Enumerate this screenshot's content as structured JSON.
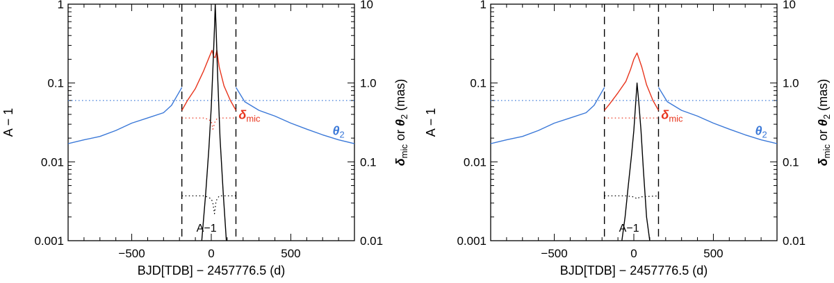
{
  "chart_data": [
    {
      "type": "line",
      "xlabel": "BJD[TDB] − 2457776.5 (d)",
      "ylabel_left": "A − 1",
      "ylabel_right_parts": [
        "δ",
        "mic",
        " or ",
        "θ",
        "2",
        " (mas)"
      ],
      "xlim": [
        -900,
        900
      ],
      "ylim_left": [
        0.001,
        1
      ],
      "ylim_right": [
        0.01,
        10
      ],
      "log_y": true,
      "x_ticks": [
        -500,
        0,
        500
      ],
      "x_tick_labels": [
        "−500",
        "0",
        "500"
      ],
      "y_ticks_left": [
        0.001,
        0.01,
        0.1,
        1
      ],
      "y_tick_labels_left": [
        "0.001",
        "0.01",
        "0.1",
        "1"
      ],
      "y_ticks_right": [
        0.01,
        0.1,
        1.0,
        10
      ],
      "y_tick_labels_right": [
        "0.01",
        "0.1",
        "1.0",
        "10"
      ],
      "vlines": [
        -185,
        155
      ],
      "hlines": [
        {
          "value": 0.6,
          "axis": "right",
          "style": "dotted",
          "color": "#3a78d8"
        }
      ],
      "annotations": [
        {
          "text": "A−1",
          "x": -30,
          "y_left": 0.0012
        },
        {
          "text_main": "δ",
          "text_sub": "mic",
          "x": 240,
          "y_left": 0.035,
          "color": "#e8341c"
        },
        {
          "text_main": "θ",
          "text_sub": "2",
          "x": 800,
          "y_left": 0.022,
          "color": "#3a78d8"
        }
      ],
      "series": [
        {
          "axis": "right",
          "color": "#3a78d8",
          "style": "solid",
          "x": [
            -900,
            -800,
            -700,
            -600,
            -500,
            -400,
            -300,
            -250,
            -185
          ],
          "y": [
            0.17,
            0.19,
            0.21,
            0.25,
            0.31,
            0.36,
            0.42,
            0.52,
            0.88
          ]
        },
        {
          "axis": "right",
          "color": "#3a78d8",
          "style": "solid",
          "x": [
            155,
            210,
            300,
            400,
            500,
            600,
            700,
            800,
            900
          ],
          "y": [
            0.88,
            0.58,
            0.45,
            0.38,
            0.31,
            0.26,
            0.22,
            0.19,
            0.17
          ]
        },
        {
          "axis": "right",
          "color": "#e8341c",
          "style": "solid",
          "x": [
            -185,
            -150,
            -100,
            -50,
            -10,
            5,
            15,
            25,
            35,
            50,
            80,
            120,
            155
          ],
          "y": [
            0.45,
            0.6,
            0.85,
            1.4,
            2.2,
            2.6,
            2.15,
            2.1,
            2.6,
            1.6,
            0.92,
            0.6,
            0.45
          ]
        },
        {
          "axis": "right",
          "color": "#e8341c",
          "style": "dotted",
          "x": [
            -185,
            -100,
            -40,
            0,
            10,
            25,
            40,
            80,
            155
          ],
          "y": [
            0.36,
            0.36,
            0.36,
            0.33,
            0.26,
            0.33,
            0.36,
            0.36,
            0.36
          ]
        },
        {
          "axis": "left",
          "color": "#000000",
          "style": "solid",
          "x": [
            -60,
            -35,
            -15,
            0,
            10,
            20,
            25,
            30,
            40,
            55,
            75,
            95
          ],
          "y": [
            0.00095,
            0.004,
            0.015,
            0.05,
            0.15,
            0.5,
            1.0,
            0.5,
            0.12,
            0.02,
            0.004,
            0.00095
          ]
        },
        {
          "axis": "left",
          "color": "#000000",
          "style": "dotted",
          "x": [
            -185,
            -100,
            -40,
            0,
            10,
            20,
            30,
            50,
            155
          ],
          "y": [
            0.0037,
            0.0037,
            0.0037,
            0.0034,
            0.003,
            0.0022,
            0.0032,
            0.0037,
            0.0037
          ]
        }
      ]
    },
    {
      "type": "line",
      "xlabel": "BJD[TDB] − 2457776.5 (d)",
      "ylabel_left": "A − 1",
      "ylabel_right_parts": [
        "δ",
        "mic",
        " or ",
        "θ",
        "2",
        " (mas)"
      ],
      "xlim": [
        -900,
        900
      ],
      "ylim_left": [
        0.001,
        1
      ],
      "ylim_right": [
        0.01,
        10
      ],
      "log_y": true,
      "x_ticks": [
        -500,
        0,
        500
      ],
      "x_tick_labels": [
        "−500",
        "0",
        "500"
      ],
      "y_ticks_left": [
        0.001,
        0.01,
        0.1,
        1
      ],
      "y_tick_labels_left": [
        "0.001",
        "0.01",
        "0.1",
        "1"
      ],
      "y_ticks_right": [
        0.01,
        0.1,
        1.0,
        10
      ],
      "y_tick_labels_right": [
        "0.01",
        "0.1",
        "1.0",
        "10"
      ],
      "vlines": [
        -185,
        155
      ],
      "hlines": [
        {
          "value": 0.6,
          "axis": "right",
          "style": "dotted",
          "color": "#3a78d8"
        }
      ],
      "annotations": [
        {
          "text": "A−1",
          "x": -30,
          "y_left": 0.0012
        },
        {
          "text_main": "δ",
          "text_sub": "mic",
          "x": 240,
          "y_left": 0.035,
          "color": "#e8341c"
        },
        {
          "text_main": "θ",
          "text_sub": "2",
          "x": 800,
          "y_left": 0.022,
          "color": "#3a78d8"
        }
      ],
      "series": [
        {
          "axis": "right",
          "color": "#3a78d8",
          "style": "solid",
          "x": [
            -900,
            -800,
            -700,
            -600,
            -500,
            -400,
            -300,
            -250,
            -185
          ],
          "y": [
            0.17,
            0.19,
            0.21,
            0.25,
            0.31,
            0.36,
            0.42,
            0.52,
            0.88
          ]
        },
        {
          "axis": "right",
          "color": "#3a78d8",
          "style": "solid",
          "x": [
            155,
            210,
            300,
            400,
            500,
            600,
            700,
            800,
            900
          ],
          "y": [
            0.88,
            0.58,
            0.45,
            0.38,
            0.31,
            0.26,
            0.22,
            0.19,
            0.17
          ]
        },
        {
          "axis": "right",
          "color": "#e8341c",
          "style": "solid",
          "x": [
            -185,
            -150,
            -100,
            -50,
            -20,
            0,
            20,
            50,
            80,
            120,
            155
          ],
          "y": [
            0.45,
            0.55,
            0.75,
            1.05,
            1.5,
            2.0,
            2.4,
            1.6,
            0.95,
            0.6,
            0.45
          ]
        },
        {
          "axis": "right",
          "color": "#e8341c",
          "style": "dotted",
          "x": [
            -185,
            155
          ],
          "y": [
            0.36,
            0.36
          ]
        },
        {
          "axis": "left",
          "color": "#000000",
          "style": "solid",
          "x": [
            -75,
            -55,
            -35,
            -15,
            0,
            10,
            20,
            30,
            45,
            60,
            80,
            100
          ],
          "y": [
            0.00095,
            0.002,
            0.005,
            0.012,
            0.025,
            0.05,
            0.1,
            0.06,
            0.025,
            0.008,
            0.002,
            0.00095
          ]
        },
        {
          "axis": "left",
          "color": "#000000",
          "style": "dotted",
          "x": [
            -185,
            -50,
            0,
            20,
            40,
            155
          ],
          "y": [
            0.0037,
            0.0037,
            0.0036,
            0.0034,
            0.0036,
            0.0037
          ]
        }
      ]
    }
  ]
}
